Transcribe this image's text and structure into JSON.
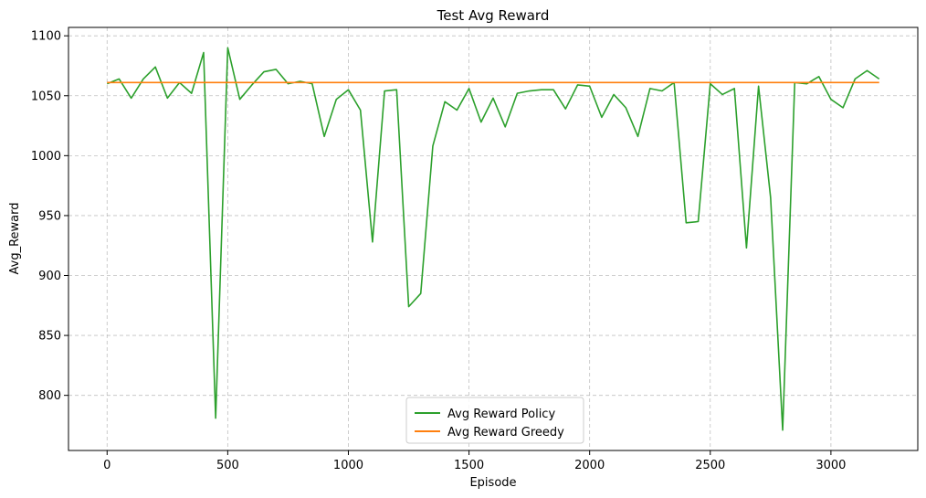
{
  "chart_data": {
    "type": "line",
    "title": "Test Avg Reward",
    "xlabel": "Episode",
    "ylabel": "Avg_Reward",
    "xlim": [
      -160,
      3360
    ],
    "ylim": [
      754,
      1107
    ],
    "xticks": [
      0,
      500,
      1000,
      1500,
      2000,
      2500,
      3000
    ],
    "yticks": [
      800,
      850,
      900,
      950,
      1000,
      1050,
      1100
    ],
    "grid": true,
    "legend_position": "bottom-center",
    "series": [
      {
        "name": "Avg Reward Policy",
        "color": "#2ca02c",
        "x": [
          0,
          50,
          100,
          150,
          200,
          250,
          300,
          350,
          400,
          450,
          500,
          550,
          600,
          650,
          700,
          750,
          800,
          850,
          900,
          950,
          1000,
          1050,
          1100,
          1150,
          1200,
          1250,
          1300,
          1350,
          1400,
          1450,
          1500,
          1550,
          1600,
          1650,
          1700,
          1750,
          1800,
          1850,
          1900,
          1950,
          2000,
          2050,
          2100,
          2150,
          2200,
          2250,
          2300,
          2350,
          2400,
          2450,
          2500,
          2550,
          2600,
          2650,
          2700,
          2750,
          2800,
          2850,
          2900,
          2950,
          3000,
          3050,
          3100,
          3150,
          3200
        ],
        "y": [
          1060,
          1064,
          1048,
          1064,
          1074,
          1048,
          1061,
          1052,
          1086,
          781,
          1090,
          1047,
          1059,
          1070,
          1072,
          1060,
          1062,
          1060,
          1016,
          1047,
          1055,
          1038,
          928,
          1054,
          1055,
          874,
          885,
          1008,
          1045,
          1038,
          1056,
          1028,
          1048,
          1024,
          1052,
          1054,
          1055,
          1055,
          1039,
          1059,
          1058,
          1032,
          1051,
          1040,
          1016,
          1056,
          1054,
          1061,
          944,
          945,
          1060,
          1051,
          1056,
          923,
          1058,
          965,
          771,
          1061,
          1060,
          1066,
          1047,
          1040,
          1064,
          1071,
          1064
        ]
      },
      {
        "name": "Avg Reward Greedy",
        "color": "#ff7f0e",
        "x": [
          0,
          3200
        ],
        "y": [
          1061,
          1061
        ]
      }
    ]
  }
}
